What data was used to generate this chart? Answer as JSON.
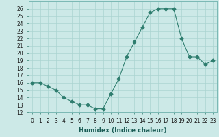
{
  "x": [
    0,
    1,
    2,
    3,
    4,
    5,
    6,
    7,
    8,
    9,
    10,
    11,
    12,
    13,
    14,
    15,
    16,
    17,
    18,
    19,
    20,
    21,
    22,
    23
  ],
  "y": [
    16,
    16,
    15.5,
    15,
    14,
    13.5,
    13,
    13,
    12.5,
    12.5,
    14.5,
    16.5,
    19.5,
    21.5,
    23.5,
    25.5,
    26,
    26,
    26,
    22,
    19.5,
    19.5,
    18.5,
    19
  ],
  "line_color": "#2e7d6e",
  "marker": "D",
  "marker_size": 2.5,
  "bg_color": "#cce9e7",
  "grid_color": "#aad4d1",
  "xlabel": "Humidex (Indice chaleur)",
  "xlim": [
    -0.5,
    23.5
  ],
  "ylim": [
    12,
    27
  ],
  "yticks": [
    12,
    13,
    14,
    15,
    16,
    17,
    18,
    19,
    20,
    21,
    22,
    23,
    24,
    25,
    26
  ],
  "xticks": [
    0,
    1,
    2,
    3,
    4,
    5,
    6,
    7,
    8,
    9,
    10,
    11,
    12,
    13,
    14,
    15,
    16,
    17,
    18,
    19,
    20,
    21,
    22,
    23
  ],
  "xtick_labels": [
    "0",
    "1",
    "2",
    "3",
    "4",
    "5",
    "6",
    "7",
    "8",
    "9",
    "10",
    "11",
    "12",
    "13",
    "14",
    "15",
    "16",
    "17",
    "18",
    "19",
    "20",
    "21",
    "22",
    "23"
  ],
  "label_fontsize": 6.5,
  "tick_fontsize": 5.5
}
